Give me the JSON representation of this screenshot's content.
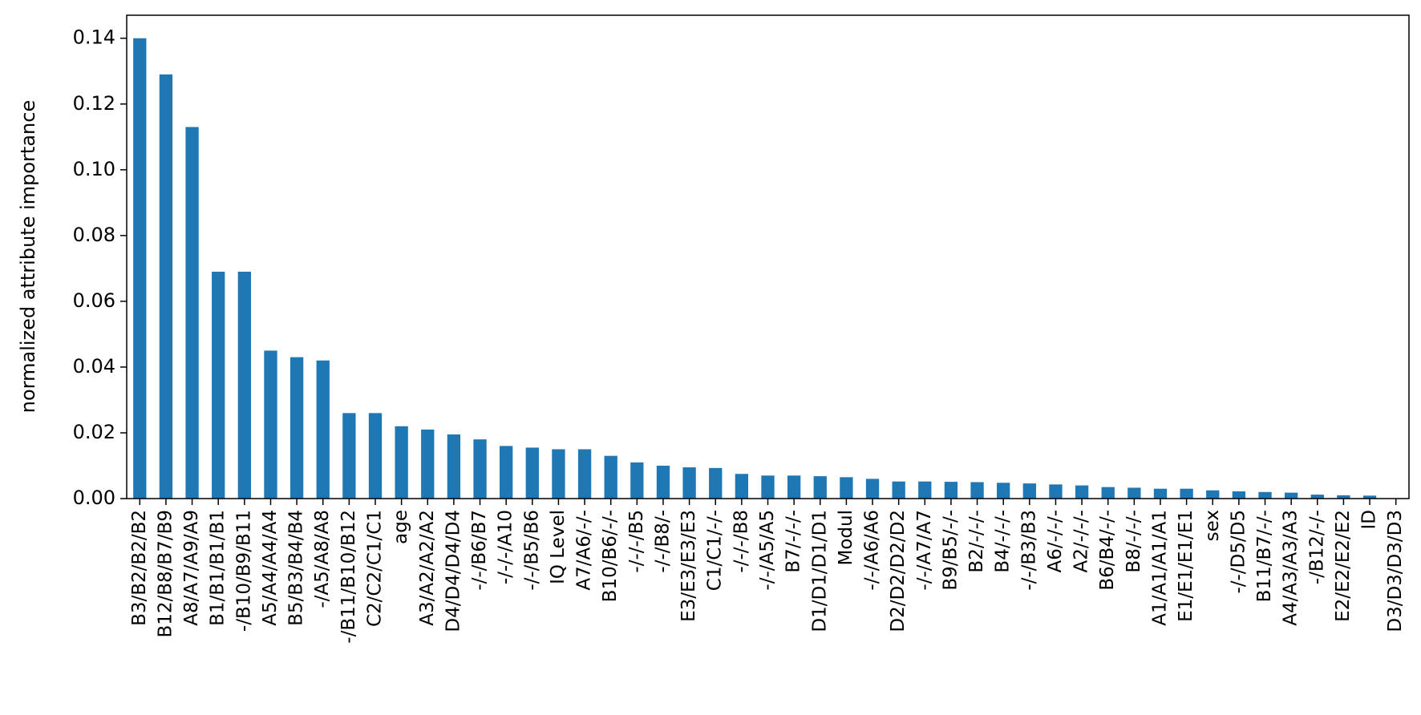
{
  "chart_data": {
    "type": "bar",
    "y_label": "normalized attribute importance",
    "categories": [
      "B3/B2/B2/B2",
      "B12/B8/B7/B9",
      "A8/A7/A9/A9",
      "B1/B1/B1/B1",
      "-/B10/B9/B11",
      "A5/A4/A4/A4",
      "B5/B3/B4/B4",
      "-/A5/A8/A8",
      "-/B11/B10/B12",
      "C2/C2/C1/C1",
      "age",
      "A3/A2/A2/A2",
      "D4/D4/D4/D4",
      "-/-/B6/B7",
      "-/-/-/A10",
      "-/-/B5/B6",
      "IQ Level",
      "A7/A6/-/-",
      "B10/B6/-/-",
      "-/-/-/B5",
      "-/-/B8/-",
      "E3/E3/E3/E3",
      "C1/C1/-/-",
      "-/-/-/B8",
      "-/-/A5/A5",
      "B7/-/-/-",
      "D1/D1/D1/D1",
      "Modul",
      "-/-/A6/A6",
      "D2/D2/D2/D2",
      "-/-/A7/A7",
      "B9/B5/-/-",
      "B2/-/-/-",
      "B4/-/-/-",
      "-/-/B3/B3",
      "A6/-/-/-",
      "A2/-/-/-",
      "B6/B4/-/-",
      "B8/-/-/-",
      "A1/A1/A1/A1",
      "E1/E1/E1/E1",
      "sex",
      "-/-/D5/D5",
      "B11/B7/-/-",
      "A4/A3/A3/A3",
      "-/B12/-/-",
      "E2/E2/E2/E2",
      "ID",
      "D3/D3/D3/D3"
    ],
    "values": [
      0.14,
      0.129,
      0.113,
      0.069,
      0.069,
      0.045,
      0.043,
      0.042,
      0.026,
      0.026,
      0.022,
      0.021,
      0.0195,
      0.018,
      0.016,
      0.0155,
      0.015,
      0.015,
      0.013,
      0.011,
      0.01,
      0.0095,
      0.0093,
      0.0075,
      0.007,
      0.007,
      0.0068,
      0.0065,
      0.006,
      0.0052,
      0.0052,
      0.0051,
      0.005,
      0.0048,
      0.0046,
      0.0043,
      0.004,
      0.0035,
      0.0033,
      0.003,
      0.003,
      0.0025,
      0.0022,
      0.002,
      0.0018,
      0.0012,
      0.001,
      0.0009,
      0.0001
    ],
    "color": "#1f77b4",
    "ylim": [
      0,
      0.147
    ],
    "yticks": [
      {
        "value": 0,
        "label": "0.00"
      },
      {
        "value": 0.02,
        "label": "0.02"
      },
      {
        "value": 0.04,
        "label": "0.04"
      },
      {
        "value": 0.06,
        "label": "0.06"
      },
      {
        "value": 0.08,
        "label": "0.08"
      },
      {
        "value": 0.1,
        "label": "0.10"
      },
      {
        "value": 0.12,
        "label": "0.12"
      },
      {
        "value": 0.14,
        "label": "0.14"
      }
    ]
  }
}
